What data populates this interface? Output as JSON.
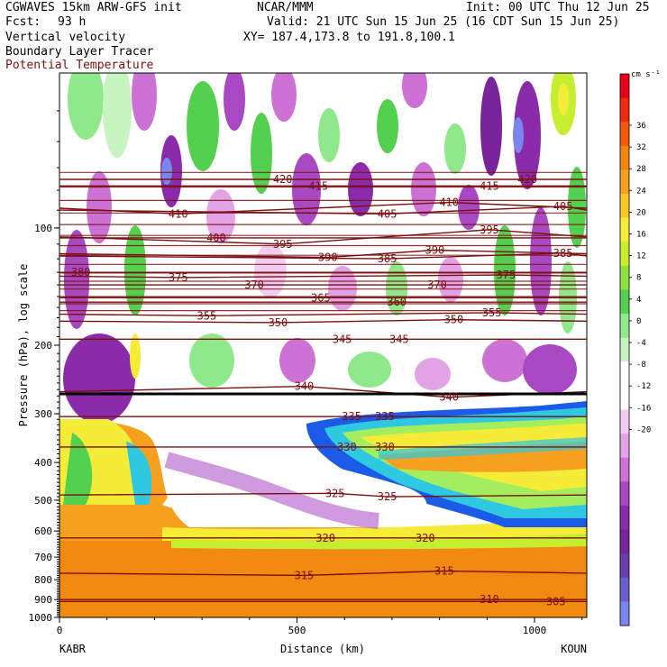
{
  "header": {
    "model": "CGWAVES 15km ARW-GFS init",
    "center": "NCAR/MMM",
    "init": "Init: 00 UTC Thu 12 Jun 25",
    "fcst_label": "Fcst:",
    "fcst_value": "93 h",
    "valid": "Valid: 21 UTC Sun 15 Jun 25 (16 CDT Sun 15 Jun 25)",
    "xy": "XY= 187.4,173.8 to 191.8,100.1",
    "field": "Vertical velocity",
    "tracer": "Boundary Layer Tracer",
    "contour_field": "Potential Temperature"
  },
  "axes": {
    "ylabel": "Pressure (hPa), log scale",
    "xlabel": "Distance (km)",
    "left_station": "KABR",
    "right_station": "KOUN"
  },
  "colorbar": {
    "units": "cm s⁻¹",
    "labels": [
      "36",
      "32",
      "28",
      "24",
      "20",
      "16",
      "12",
      "8",
      "4",
      "0",
      "-4",
      "-8",
      "-12",
      "-16",
      "-20"
    ],
    "colors": [
      "#e8001a",
      "#ef2a10",
      "#f25a0a",
      "#f28410",
      "#f6a020",
      "#f8c828",
      "#f5ec38",
      "#c6ee30",
      "#8ee240",
      "#52d04e",
      "#8fe88a",
      "#c8f4c2",
      "#ffffff",
      "#ffffff",
      "#f2cdf2",
      "#e4a2e6",
      "#cc72d4",
      "#a848c2",
      "#8a2caa",
      "#7a249c",
      "#6a3cac",
      "#6a5ed0",
      "#7a86ee"
    ]
  },
  "chart_data": {
    "type": "heatmap",
    "title": "Vertical velocity",
    "xlabel": "Distance (km)",
    "ylabel": "Pressure (hPa), log scale",
    "x_ticks": [
      0,
      500,
      1000
    ],
    "x_range": [
      0,
      1110
    ],
    "y_ticks": [
      100,
      200,
      300,
      400,
      500,
      600,
      700,
      800,
      900,
      1000
    ],
    "y_range": [
      1000,
      40
    ],
    "y_scale": "log",
    "colorbar_range_cm_s": [
      -22,
      40
    ],
    "contour_labels": [
      {
        "value": "420",
        "x": 470,
        "p": 75
      },
      {
        "value": "415",
        "x": 545,
        "p": 78
      },
      {
        "value": "420",
        "x": 985,
        "p": 75
      },
      {
        "value": "415",
        "x": 905,
        "p": 78
      },
      {
        "value": "410",
        "x": 250,
        "p": 92
      },
      {
        "value": "410",
        "x": 820,
        "p": 86
      },
      {
        "value": "405",
        "x": 690,
        "p": 92
      },
      {
        "value": "405",
        "x": 1060,
        "p": 88
      },
      {
        "value": "400",
        "x": 330,
        "p": 106
      },
      {
        "value": "395",
        "x": 470,
        "p": 110
      },
      {
        "value": "395",
        "x": 905,
        "p": 101
      },
      {
        "value": "390",
        "x": 565,
        "p": 119
      },
      {
        "value": "390",
        "x": 790,
        "p": 114
      },
      {
        "value": "385",
        "x": 690,
        "p": 120
      },
      {
        "value": "385",
        "x": 1060,
        "p": 116
      },
      {
        "value": "380",
        "x": 45,
        "p": 130
      },
      {
        "value": "375",
        "x": 250,
        "p": 134
      },
      {
        "value": "375",
        "x": 940,
        "p": 132
      },
      {
        "value": "370",
        "x": 410,
        "p": 140
      },
      {
        "value": "370",
        "x": 795,
        "p": 140
      },
      {
        "value": "365",
        "x": 550,
        "p": 151
      },
      {
        "value": "360",
        "x": 710,
        "p": 155
      },
      {
        "value": "355",
        "x": 310,
        "p": 168
      },
      {
        "value": "355",
        "x": 910,
        "p": 165
      },
      {
        "value": "350",
        "x": 460,
        "p": 175
      },
      {
        "value": "350",
        "x": 830,
        "p": 172
      },
      {
        "value": "345",
        "x": 595,
        "p": 193
      },
      {
        "value": "345",
        "x": 715,
        "p": 193
      },
      {
        "value": "340",
        "x": 515,
        "p": 255
      },
      {
        "value": "340",
        "x": 820,
        "p": 272
      },
      {
        "value": "335",
        "x": 615,
        "p": 305
      },
      {
        "value": "335",
        "x": 685,
        "p": 305
      },
      {
        "value": "330",
        "x": 605,
        "p": 365
      },
      {
        "value": "330",
        "x": 685,
        "p": 365
      },
      {
        "value": "325",
        "x": 580,
        "p": 480
      },
      {
        "value": "325",
        "x": 690,
        "p": 490
      },
      {
        "value": "320",
        "x": 560,
        "p": 625
      },
      {
        "value": "320",
        "x": 770,
        "p": 625
      },
      {
        "value": "315",
        "x": 515,
        "p": 780
      },
      {
        "value": "315",
        "x": 810,
        "p": 760
      },
      {
        "value": "310",
        "x": 905,
        "p": 900
      },
      {
        "value": "305",
        "x": 1045,
        "p": 910
      }
    ]
  }
}
